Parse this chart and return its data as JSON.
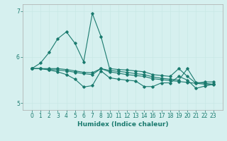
{
  "xlabel": "Humidex (Indice chaleur)",
  "bg_color": "#d6f0ef",
  "line_color": "#1a7a6e",
  "grid_color": "#c8e8e5",
  "x_ticks": [
    0,
    1,
    2,
    3,
    4,
    5,
    6,
    7,
    8,
    10,
    11,
    12,
    13,
    14,
    16,
    17,
    18,
    19,
    20,
    21,
    22,
    23
  ],
  "ylim": [
    4.85,
    7.15
  ],
  "yticks": [
    5,
    6,
    7
  ],
  "series": [
    [
      5.75,
      5.87,
      6.1,
      6.4,
      6.55,
      6.3,
      5.9,
      6.95,
      6.45,
      5.75,
      5.73,
      5.72,
      5.7,
      5.68,
      5.62,
      5.6,
      5.58,
      5.75,
      5.58,
      5.43,
      5.46,
      5.46
    ],
    [
      5.75,
      5.75,
      5.75,
      5.75,
      5.73,
      5.7,
      5.67,
      5.66,
      5.75,
      5.71,
      5.69,
      5.67,
      5.64,
      5.62,
      5.57,
      5.54,
      5.52,
      5.5,
      5.75,
      5.45,
      5.43,
      5.41
    ],
    [
      5.75,
      5.75,
      5.72,
      5.68,
      5.62,
      5.52,
      5.35,
      5.38,
      5.7,
      5.55,
      5.52,
      5.5,
      5.48,
      5.36,
      5.36,
      5.44,
      5.44,
      5.58,
      5.5,
      5.32,
      5.37,
      5.41
    ],
    [
      5.75,
      5.75,
      5.73,
      5.72,
      5.7,
      5.67,
      5.64,
      5.62,
      5.75,
      5.68,
      5.65,
      5.62,
      5.6,
      5.58,
      5.53,
      5.51,
      5.49,
      5.47,
      5.45,
      5.43,
      5.41,
      5.4
    ]
  ],
  "x_indices": [
    0,
    1,
    2,
    3,
    4,
    5,
    6,
    7,
    8,
    9,
    10,
    11,
    12,
    13,
    14,
    15,
    16,
    17,
    18,
    19,
    20,
    21
  ]
}
